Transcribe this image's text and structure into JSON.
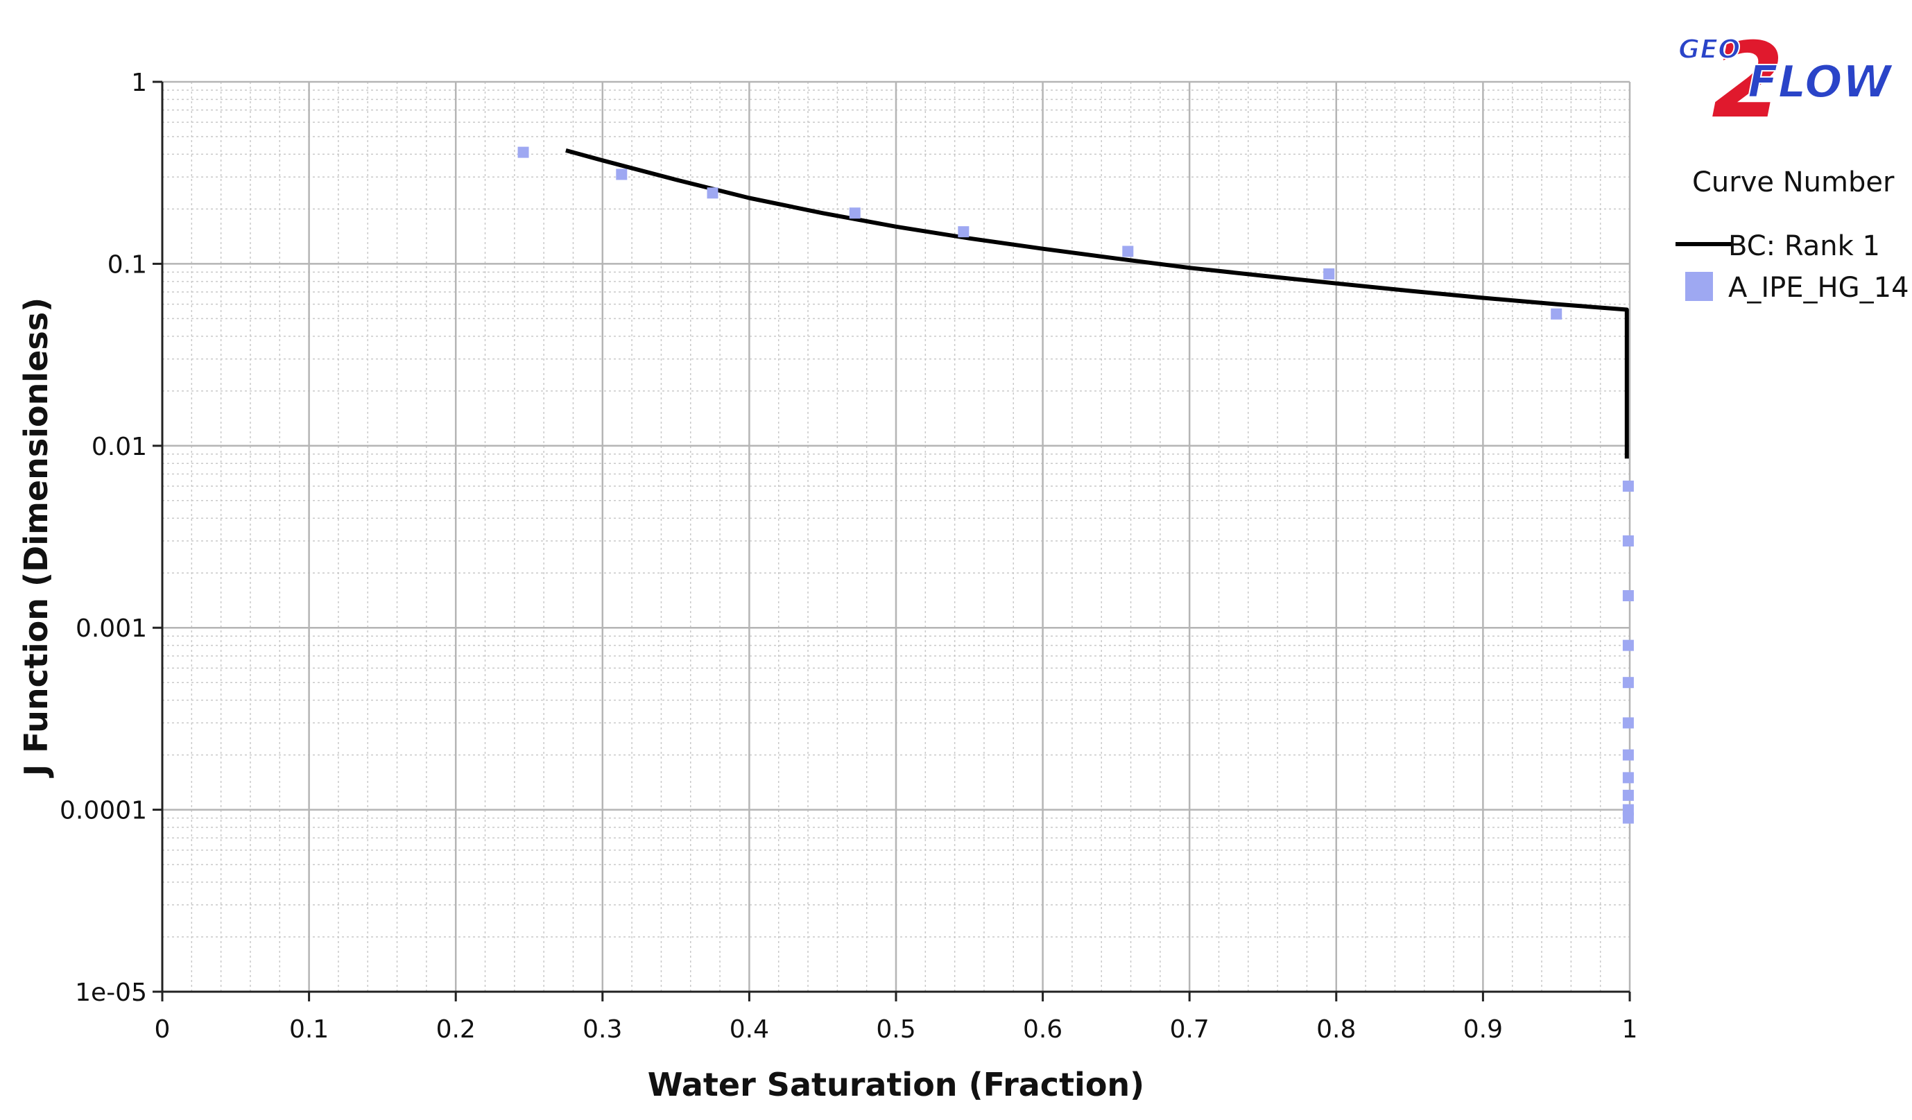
{
  "logo": {
    "geo": "GEO",
    "two": "2",
    "flow": "FLOW"
  },
  "legend": {
    "title": "Curve Number",
    "entries": [
      {
        "label": "BC: Rank 1",
        "color": "#000000",
        "kind": "line"
      },
      {
        "label": "A_IPE_HG_14",
        "color": "#9ea8f2",
        "kind": "marker"
      }
    ]
  },
  "chart_data": {
    "type": "scatter",
    "xlabel": "Water Saturation (Fraction)",
    "ylabel": "J Function (Dimensionless)",
    "xlim": [
      0,
      1
    ],
    "ylim": [
      1e-05,
      1
    ],
    "yscale": "log",
    "grid": true,
    "legend_position": "right",
    "x_ticks": [
      "0",
      "0.1",
      "0.2",
      "0.3",
      "0.4",
      "0.5",
      "0.6",
      "0.7",
      "0.8",
      "0.9",
      "1"
    ],
    "y_ticks": [
      "1e-05",
      "0.0001",
      "0.001",
      "0.01",
      "0.1",
      "1"
    ],
    "series": [
      {
        "name": "BC: Rank 1",
        "kind": "line",
        "color": "#000000",
        "x": [
          0.275,
          0.3,
          0.35,
          0.4,
          0.45,
          0.5,
          0.55,
          0.6,
          0.65,
          0.7,
          0.75,
          0.8,
          0.85,
          0.9,
          0.95,
          0.998,
          0.998
        ],
        "y": [
          0.42,
          0.37,
          0.29,
          0.23,
          0.19,
          0.16,
          0.138,
          0.121,
          0.107,
          0.095,
          0.086,
          0.078,
          0.071,
          0.065,
          0.06,
          0.056,
          0.0085
        ]
      },
      {
        "name": "A_IPE_HG_14",
        "kind": "scatter",
        "color": "#9ea8f2",
        "x": [
          0.246,
          0.313,
          0.375,
          0.472,
          0.546,
          0.658,
          0.795,
          0.95,
          0.999,
          0.999,
          0.999,
          0.999,
          0.999,
          0.999,
          0.999,
          0.999,
          0.999,
          0.999,
          0.999
        ],
        "y": [
          0.41,
          0.31,
          0.245,
          0.19,
          0.15,
          0.117,
          0.088,
          0.053,
          0.006,
          0.003,
          0.0015,
          0.0008,
          0.0005,
          0.0003,
          0.0002,
          0.00015,
          0.00012,
          0.0001,
          9e-05
        ]
      }
    ]
  }
}
